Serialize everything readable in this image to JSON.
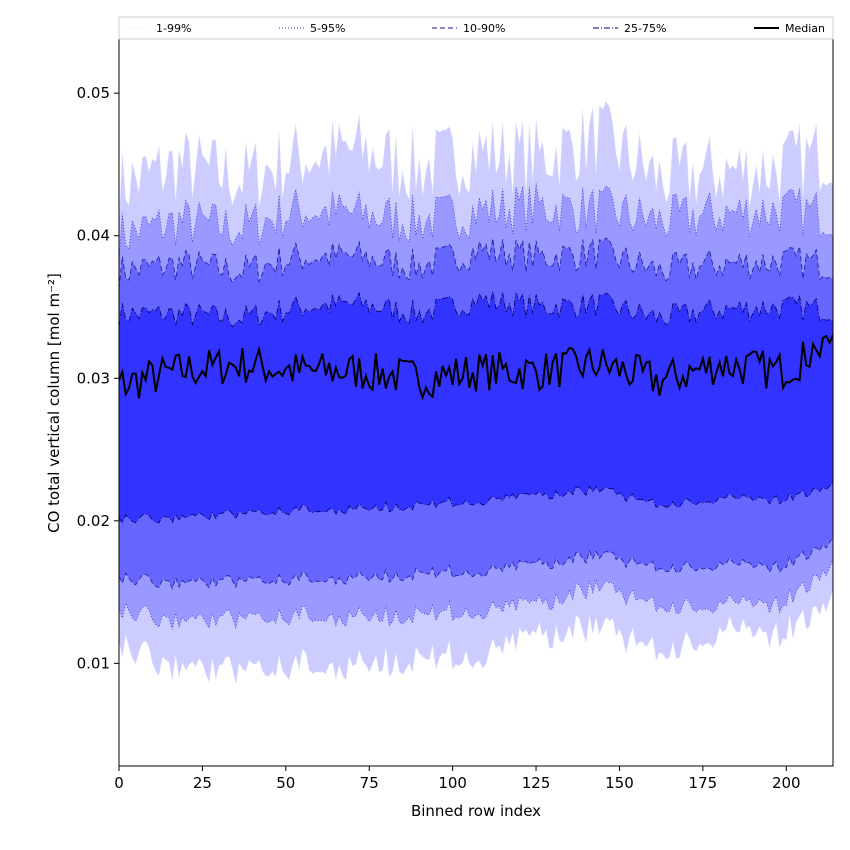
{
  "chart_data": {
    "type": "area",
    "xlabel": "Binned row index",
    "ylabel": "CO total vertical column [mol m⁻²]",
    "xlim": [
      0,
      214
    ],
    "ylim": [
      0.0028,
      0.0538
    ],
    "xticks": [
      0,
      25,
      50,
      75,
      100,
      125,
      150,
      175,
      200
    ],
    "yticks": [
      0.01,
      0.02,
      0.03,
      0.04,
      0.05
    ],
    "ytick_labels": [
      "0.01",
      "0.02",
      "0.03",
      "0.04",
      "0.05"
    ],
    "legend_placement": "top (above plot, single row)",
    "grid": false,
    "series": [
      {
        "name": "1-99%",
        "color": "#ccccff",
        "line_color": "#e6e6ff",
        "line_style": "dotted",
        "upper": [
          0.0435,
          0.045,
          0.044,
          0.0455,
          0.046,
          0.0447,
          0.046,
          0.0455,
          0.047,
          0.044,
          0.0445,
          0.0448,
          0.046
        ],
        "lower": [
          0.0125,
          0.0105,
          0.0105,
          0.0112,
          0.011,
          0.0115,
          0.0118,
          0.0132,
          0.0135,
          0.012,
          0.0135,
          0.013,
          0.0155
        ]
      },
      {
        "name": "5-95%",
        "color": "#9999ff",
        "line_color": "#3333cc",
        "line_style": "dotted",
        "upper": [
          0.04,
          0.041,
          0.0405,
          0.0418,
          0.0415,
          0.041,
          0.0418,
          0.042,
          0.0418,
          0.041,
          0.0415,
          0.0418,
          0.0415
        ],
        "lower": [
          0.0145,
          0.0135,
          0.0138,
          0.0142,
          0.014,
          0.0142,
          0.0145,
          0.015,
          0.016,
          0.0148,
          0.015,
          0.0148,
          0.0175
        ]
      },
      {
        "name": "10-90%",
        "color": "#6666ff",
        "line_color": "#1a1a99",
        "line_style": "dashed",
        "upper": [
          0.0375,
          0.038,
          0.0375,
          0.0385,
          0.0385,
          0.0378,
          0.039,
          0.0385,
          0.0388,
          0.0375,
          0.038,
          0.0382,
          0.038
        ],
        "lower": [
          0.0165,
          0.016,
          0.0162,
          0.0165,
          0.0165,
          0.0168,
          0.017,
          0.0175,
          0.018,
          0.0172,
          0.0175,
          0.0172,
          0.019
        ]
      },
      {
        "name": "25-75%",
        "color": "#3333ff",
        "line_color": "#000066",
        "line_style": "dashdot",
        "upper": [
          0.0345,
          0.0345,
          0.0342,
          0.035,
          0.0352,
          0.0345,
          0.0355,
          0.035,
          0.0352,
          0.0342,
          0.0348,
          0.035,
          0.0348
        ],
        "lower": [
          0.0205,
          0.0205,
          0.0208,
          0.0212,
          0.0212,
          0.0215,
          0.0218,
          0.0222,
          0.0225,
          0.0215,
          0.022,
          0.0218,
          0.0228
        ]
      },
      {
        "name": "Median",
        "color": "#000000",
        "line_style": "solid",
        "values": [
          0.0295,
          0.0305,
          0.031,
          0.0305,
          0.0305,
          0.03,
          0.0305,
          0.0305,
          0.031,
          0.0298,
          0.031,
          0.0305,
          0.0325
        ]
      }
    ],
    "x": [
      0,
      18,
      36,
      54,
      72,
      90,
      108,
      126,
      144,
      162,
      180,
      198,
      214
    ]
  }
}
